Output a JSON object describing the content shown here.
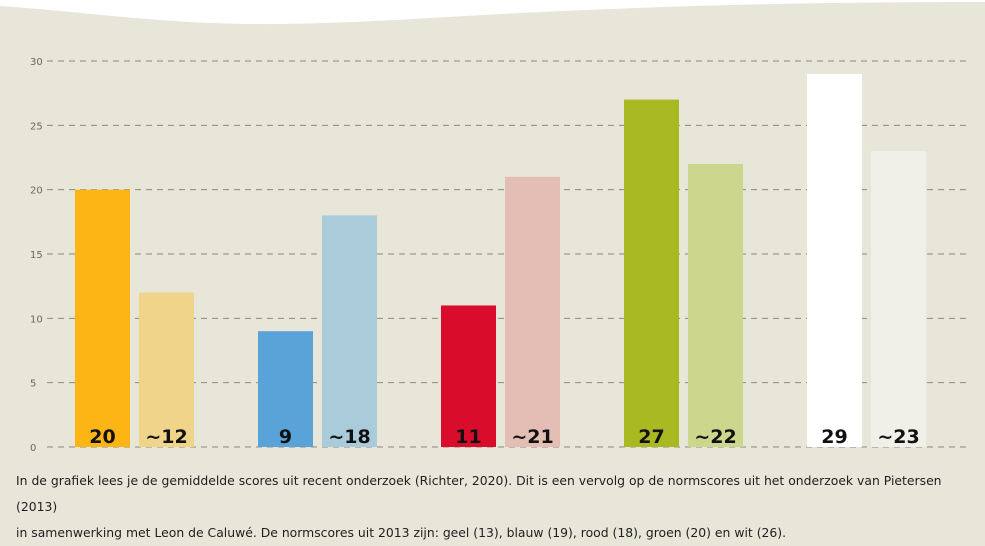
{
  "chart_data": {
    "type": "bar",
    "ylim": [
      0,
      30
    ],
    "yticks": [
      0,
      5,
      10,
      15,
      20,
      25,
      30
    ],
    "grid": true,
    "groups": [
      {
        "bars": [
          {
            "value": 20,
            "label": "20",
            "color": "#fdb515"
          },
          {
            "value": 12,
            "label": "~12",
            "color": "#f0d48a"
          }
        ]
      },
      {
        "bars": [
          {
            "value": 9,
            "label": "9",
            "color": "#5aa3d8"
          },
          {
            "value": 18,
            "label": "~18",
            "color": "#aacbd9"
          }
        ]
      },
      {
        "bars": [
          {
            "value": 11,
            "label": "11",
            "color": "#d90d2b"
          },
          {
            "value": 21,
            "label": "~21",
            "color": "#e4bdb5"
          }
        ]
      },
      {
        "bars": [
          {
            "value": 27,
            "label": "27",
            "color": "#a8b922"
          },
          {
            "value": 22,
            "label": "~22",
            "color": "#ccd68d"
          }
        ]
      },
      {
        "bars": [
          {
            "value": 29,
            "label": "29",
            "color": "#ffffff"
          },
          {
            "value": 23,
            "label": "~23",
            "color": "#f1f0e8"
          }
        ]
      }
    ]
  },
  "caption": {
    "line1": "In de grafiek lees je de gemiddelde scores uit recent onderzoek (Richter, 2020). Dit is een vervolg op de normscores uit het onderzoek van Pietersen (2013)",
    "line2": "in samenwerking met Leon de Caluwé. De normscores uit 2013 zijn: geel (13), blauw (19), rood (18), groen (20) en wit (26)."
  }
}
